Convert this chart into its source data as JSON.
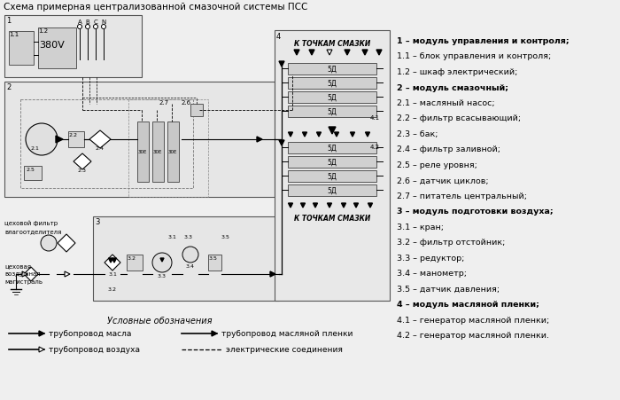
{
  "title": "Схема примерная централизованной смазочной системы ПСС",
  "bg_color": "#f0f0f0",
  "right_legend": [
    {
      "text": "1 – модуль управления и контроля;",
      "bold": true
    },
    {
      "text": "1.1 – блок управления и контроля;",
      "bold": false
    },
    {
      "text": "1.2 – шкаф электрический;",
      "bold": false
    },
    {
      "text": "2 – модуль смазочный;",
      "bold": true
    },
    {
      "text": "2.1 – масляный насос;",
      "bold": false
    },
    {
      "text": "2.2 – фильтр всасывающий;",
      "bold": false
    },
    {
      "text": "2.3 – бак;",
      "bold": false
    },
    {
      "text": "2.4 – фильтр заливной;",
      "bold": false
    },
    {
      "text": "2.5 – реле уровня;",
      "bold": false
    },
    {
      "text": "2.6 – датчик циклов;",
      "bold": false
    },
    {
      "text": "2.7 – питатель центральный;",
      "bold": false
    },
    {
      "text": "3 – модуль подготовки воздуха;",
      "bold": true
    },
    {
      "text": "3.1 – кран;",
      "bold": false
    },
    {
      "text": "3.2 – фильтр отстойник;",
      "bold": false
    },
    {
      "text": "3.3 – редуктор;",
      "bold": false
    },
    {
      "text": "3.4 – манометр;",
      "bold": false
    },
    {
      "text": "3.5 – датчик давления;",
      "bold": false
    },
    {
      "text": "4 – модуль масляной пленки;",
      "bold": true
    },
    {
      "text": "4.1 – генератор масляной пленки;",
      "bold": false
    },
    {
      "text": "4.2 – генератор масляной пленки.",
      "bold": false
    }
  ]
}
